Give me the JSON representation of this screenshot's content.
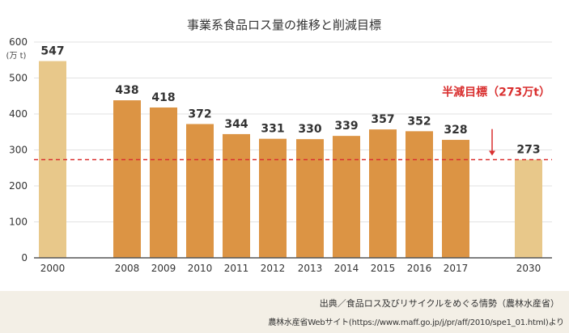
{
  "chart_data": {
    "type": "bar",
    "title": "事業系食品ロス量の推移と削減目標",
    "ylabel": "(万 t)",
    "ylim": [
      0,
      600
    ],
    "yticks": [
      0,
      100,
      200,
      300,
      400,
      500,
      600
    ],
    "categories": [
      "2000",
      "2008",
      "2009",
      "2010",
      "2011",
      "2012",
      "2013",
      "2014",
      "2015",
      "2016",
      "2017",
      "2030"
    ],
    "values": [
      547,
      438,
      418,
      372,
      344,
      331,
      330,
      339,
      357,
      352,
      328,
      273
    ],
    "target_value": 273,
    "target_label": "半減目標（273万t）",
    "grid": true,
    "colors": {
      "highlight_bar": "#e8c88a",
      "normal_bar": "#dc9444",
      "target_line": "#d92f2f",
      "axis": "#555555",
      "grid": "#e2e2e2"
    }
  },
  "footer": {
    "source": "出典／食品ロス及びリサイクルをめぐる情勢（農林水産省）",
    "website": "農林水産省Webサイト(https://www.maff.go.jp/j/pr/aff/2010/spe1_01.html)より"
  }
}
